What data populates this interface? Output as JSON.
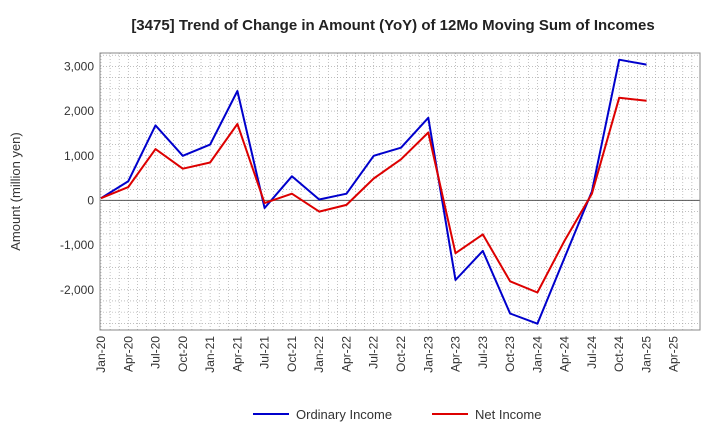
{
  "chart_data": {
    "type": "line",
    "title": "[3475]  Trend of Change in Amount (YoY) of 12Mo Moving Sum of Incomes",
    "xlabel": "",
    "ylabel": "Amount (million yen)",
    "ylim": [
      -2900,
      3300
    ],
    "yticks": [
      3000,
      2000,
      1000,
      0,
      -1000,
      -2000
    ],
    "ytick_labels": [
      "3,000",
      "2,000",
      "1,000",
      "0",
      "-1,000",
      "-2,000"
    ],
    "x": [
      "Jan-20",
      "Apr-20",
      "Jul-20",
      "Oct-20",
      "Jan-21",
      "Apr-21",
      "Jul-21",
      "Oct-21",
      "Jan-22",
      "Apr-22",
      "Jul-22",
      "Oct-22",
      "Jan-23",
      "Apr-23",
      "Jul-23",
      "Oct-23",
      "Jan-24",
      "Apr-24",
      "Jul-24",
      "Oct-24",
      "Jan-25",
      "Apr-25"
    ],
    "grid": true,
    "legend": "bottom",
    "series": [
      {
        "name": "Ordinary Income",
        "color": "#0000cc",
        "values": [
          50,
          430,
          1680,
          1000,
          1250,
          2450,
          -170,
          540,
          20,
          150,
          1000,
          1180,
          1850,
          -1780,
          -1130,
          -2530,
          -2760,
          -1280,
          200,
          3150,
          3040,
          null
        ]
      },
      {
        "name": "Net Income",
        "color": "#dd0000",
        "values": [
          50,
          300,
          1150,
          710,
          850,
          1710,
          -60,
          150,
          -250,
          -100,
          490,
          920,
          1520,
          -1180,
          -760,
          -1810,
          -2060,
          -900,
          150,
          2300,
          2230,
          null
        ]
      }
    ]
  }
}
